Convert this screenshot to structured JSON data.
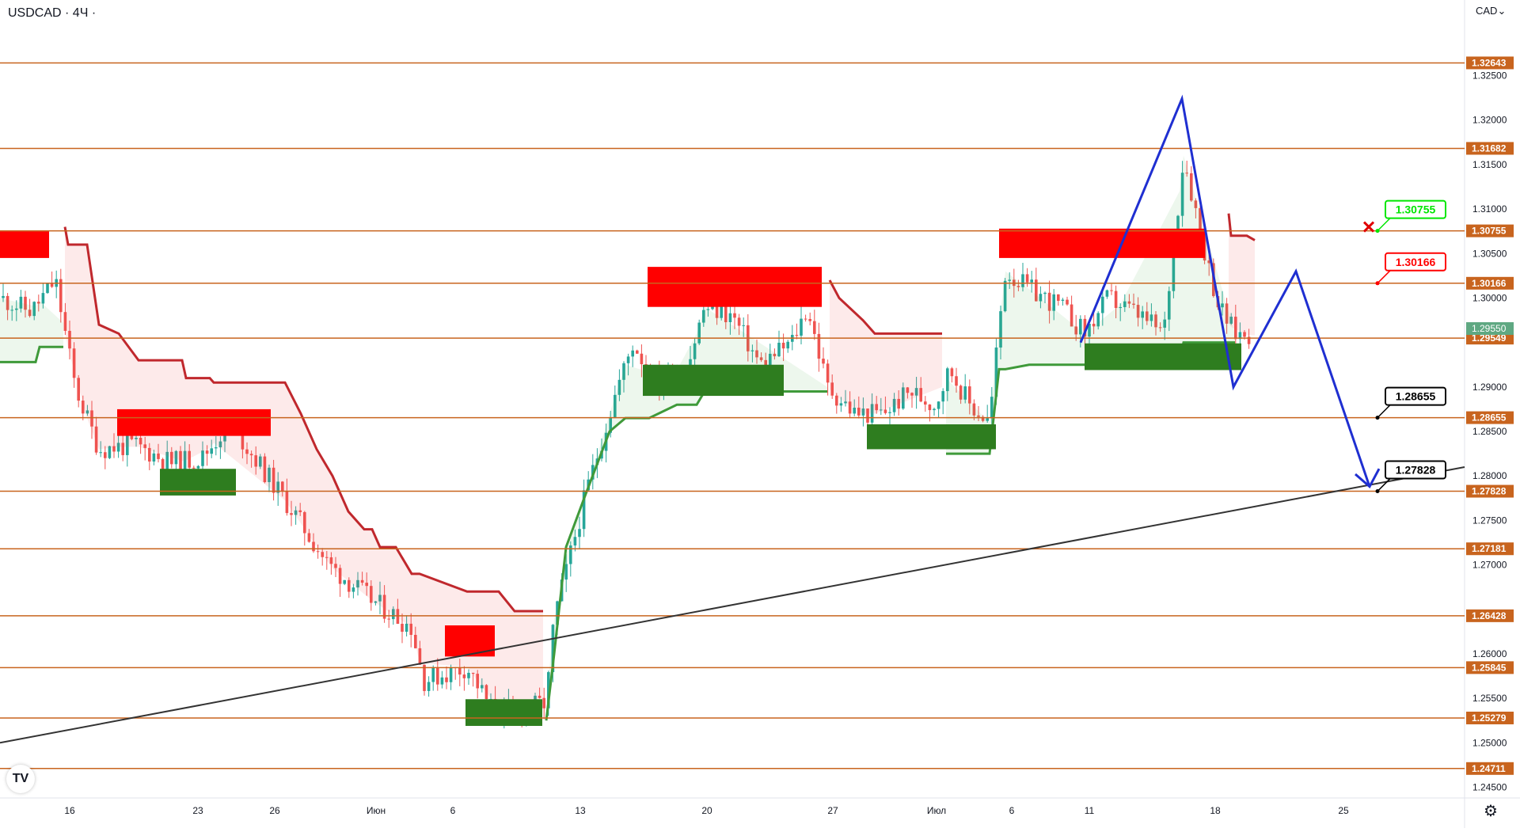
{
  "header": {
    "symbol": "USDCAD",
    "interval": "4Ч",
    "currency": "CAD"
  },
  "icons": {
    "logo": "tradingview-logo-icon",
    "settings": "gear-icon",
    "currency_menu": "chevron-down-icon"
  },
  "chart_data": {
    "type": "candlestick",
    "ylim": [
      1.2438,
      1.3335
    ],
    "y_ticks": [
      "1.32500",
      "1.32000",
      "1.31500",
      "1.31000",
      "1.30500",
      "1.30000",
      "1.29000",
      "1.28500",
      "1.28000",
      "1.27500",
      "1.27000",
      "1.26000",
      "1.25500",
      "1.25000",
      "1.24500"
    ],
    "x_ticks": [
      "16",
      "23",
      "26",
      "Июн",
      "6",
      "13",
      "20",
      "27",
      "Июл",
      "6",
      "11",
      "18",
      "25"
    ],
    "horizontal_levels": [
      "1.32643",
      "1.31682",
      "1.30755",
      "1.30166",
      "1.29549",
      "1.28655",
      "1.27828",
      "1.27181",
      "1.26428",
      "1.25845",
      "1.25279",
      "1.24711"
    ],
    "current_price": "1.29550",
    "annotations": [
      {
        "text": "1.30755",
        "price": 1.30755,
        "color": "#00e600"
      },
      {
        "text": "1.30166",
        "price": 1.30166,
        "color": "#ff0000"
      },
      {
        "text": "1.28655",
        "price": 1.28655,
        "color": "#000000"
      },
      {
        "text": "1.27828",
        "price": 1.27828,
        "color": "#000000"
      }
    ],
    "colors": {
      "level_line": "#c8641e",
      "up_candle": "#26a69a",
      "down_candle": "#ef5350",
      "trend_line": "#333333",
      "forecast": "#1f2fd1",
      "supply_zone": "#ff0000",
      "demand_zone": "#2e7d1f"
    }
  }
}
